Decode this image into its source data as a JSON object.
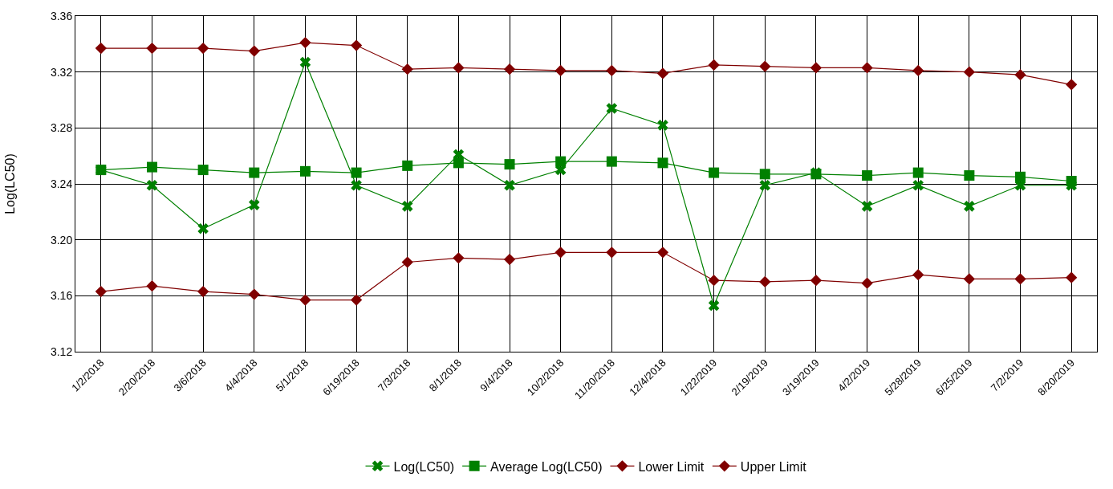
{
  "chart_data": {
    "type": "line",
    "ylabel": "Log(LC50)",
    "categories": [
      "1/2/2018",
      "2/20/2018",
      "3/6/2018",
      "4/4/2018",
      "5/1/2018",
      "6/19/2018",
      "7/3/2018",
      "8/1/2018",
      "9/4/2018",
      "10/2/2018",
      "11/20/2018",
      "12/4/2018",
      "1/22/2019",
      "2/19/2019",
      "3/19/2019",
      "4/2/2019",
      "5/28/2019",
      "6/25/2019",
      "7/2/2019",
      "8/20/2019"
    ],
    "series": [
      {
        "name": "Log(LC50)",
        "color": "#008000",
        "marker": "cross",
        "values": [
          3.25,
          3.239,
          3.208,
          3.225,
          3.327,
          3.239,
          3.224,
          3.261,
          3.239,
          3.25,
          3.294,
          3.282,
          3.153,
          3.239,
          3.248,
          3.224,
          3.239,
          3.224,
          3.239,
          3.239
        ]
      },
      {
        "name": "Average Log(LC50)",
        "color": "#008000",
        "marker": "square",
        "values": [
          3.25,
          3.252,
          3.25,
          3.248,
          3.249,
          3.248,
          3.253,
          3.255,
          3.254,
          3.256,
          3.256,
          3.255,
          3.248,
          3.247,
          3.247,
          3.246,
          3.248,
          3.246,
          3.245,
          3.242
        ]
      },
      {
        "name": "Lower Limit",
        "color": "#800000",
        "marker": "diamond",
        "values": [
          3.163,
          3.167,
          3.163,
          3.161,
          3.157,
          3.157,
          3.184,
          3.187,
          3.186,
          3.191,
          3.191,
          3.191,
          3.171,
          3.17,
          3.171,
          3.169,
          3.175,
          3.172,
          3.172,
          3.173
        ]
      },
      {
        "name": "Upper Limit",
        "color": "#800000",
        "marker": "diamond",
        "values": [
          3.337,
          3.337,
          3.337,
          3.335,
          3.341,
          3.339,
          3.322,
          3.323,
          3.322,
          3.321,
          3.321,
          3.319,
          3.325,
          3.324,
          3.323,
          3.323,
          3.321,
          3.32,
          3.318,
          3.311
        ]
      }
    ],
    "ylim": [
      3.12,
      3.36
    ],
    "yticks": [
      {
        "value": 3.12,
        "label": "3.12"
      },
      {
        "value": 3.16,
        "label": "3.16"
      },
      {
        "value": 3.2,
        "label": "3.20"
      },
      {
        "value": 3.24,
        "label": "3.24"
      },
      {
        "value": 3.28,
        "label": "3.28"
      },
      {
        "value": 3.32,
        "label": "3.32"
      },
      {
        "value": 3.36,
        "label": "3.36"
      }
    ],
    "grid": true,
    "legend": "bottom",
    "line_style": "solid"
  }
}
